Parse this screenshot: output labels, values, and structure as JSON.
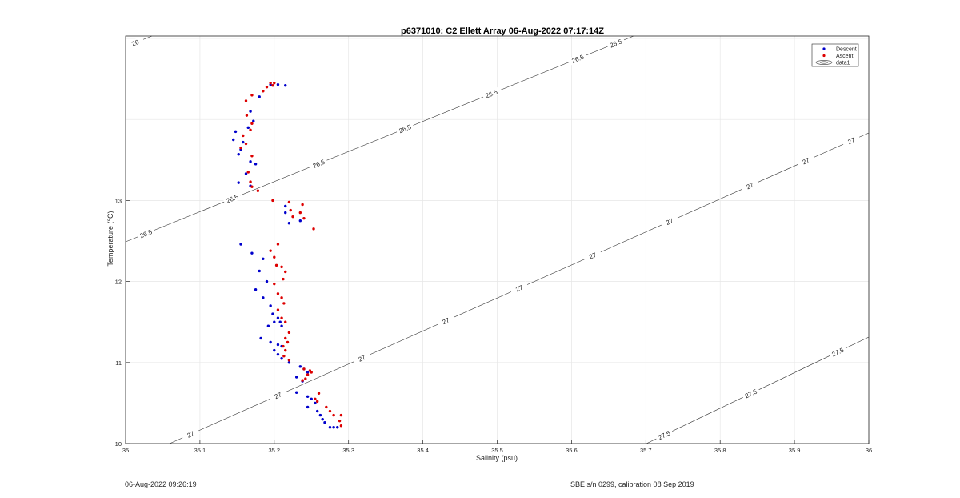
{
  "chart_data": {
    "type": "scatter",
    "title": "p6371010: C2 Ellett Array 06-Aug-2022 07:17:14Z",
    "xlabel": "Salinity (psu)",
    "ylabel": "Temperature (°C)",
    "xlim": [
      35,
      36
    ],
    "ylim": [
      10,
      15
    ],
    "xticks": [
      "35",
      "35.1",
      "35.2",
      "35.3",
      "35.4",
      "35.5",
      "35.6",
      "35.7",
      "35.8",
      "35.9",
      "36"
    ],
    "yticks": [
      "10",
      "11",
      "12",
      "13"
    ],
    "grid": true,
    "legend_position": "top-right",
    "legend": [
      "Descent",
      "Ascent",
      "data1"
    ],
    "colors": {
      "descent": "#0000cc",
      "ascent": "#dd0000",
      "contour": "#333333",
      "grid": "#e6e6e6"
    },
    "series": [
      {
        "name": "Descent",
        "points": [
          [
            35.215,
            14.42
          ],
          [
            35.205,
            14.43
          ],
          [
            35.195,
            14.43
          ],
          [
            35.18,
            14.28
          ],
          [
            35.168,
            14.1
          ],
          [
            35.172,
            13.98
          ],
          [
            35.165,
            13.9
          ],
          [
            35.145,
            13.75
          ],
          [
            35.148,
            13.85
          ],
          [
            35.158,
            13.72
          ],
          [
            35.155,
            13.63
          ],
          [
            35.152,
            13.57
          ],
          [
            35.168,
            13.48
          ],
          [
            35.175,
            13.45
          ],
          [
            35.162,
            13.33
          ],
          [
            35.152,
            13.22
          ],
          [
            35.168,
            13.18
          ],
          [
            35.215,
            12.93
          ],
          [
            35.215,
            12.85
          ],
          [
            35.22,
            12.72
          ],
          [
            35.235,
            12.75
          ],
          [
            35.155,
            12.46
          ],
          [
            35.17,
            12.35
          ],
          [
            35.185,
            12.28
          ],
          [
            35.18,
            12.13
          ],
          [
            35.19,
            12.0
          ],
          [
            35.175,
            11.9
          ],
          [
            35.185,
            11.8
          ],
          [
            35.195,
            11.7
          ],
          [
            35.198,
            11.6
          ],
          [
            35.205,
            11.55
          ],
          [
            35.208,
            11.5
          ],
          [
            35.192,
            11.45
          ],
          [
            35.2,
            11.5
          ],
          [
            35.21,
            11.45
          ],
          [
            35.182,
            11.3
          ],
          [
            35.195,
            11.25
          ],
          [
            35.205,
            11.22
          ],
          [
            35.21,
            11.2
          ],
          [
            35.2,
            11.15
          ],
          [
            35.205,
            11.1
          ],
          [
            35.21,
            11.05
          ],
          [
            35.22,
            11.0
          ],
          [
            35.235,
            10.95
          ],
          [
            35.24,
            10.92
          ],
          [
            35.245,
            10.88
          ],
          [
            35.23,
            10.82
          ],
          [
            35.238,
            10.77
          ],
          [
            35.23,
            10.63
          ],
          [
            35.245,
            10.58
          ],
          [
            35.25,
            10.55
          ],
          [
            35.255,
            10.5
          ],
          [
            35.245,
            10.45
          ],
          [
            35.258,
            10.4
          ],
          [
            35.262,
            10.35
          ],
          [
            35.265,
            10.3
          ],
          [
            35.268,
            10.26
          ],
          [
            35.275,
            10.2
          ],
          [
            35.28,
            10.2
          ],
          [
            35.285,
            10.2
          ]
        ]
      },
      {
        "name": "Ascent",
        "points": [
          [
            35.2,
            14.45
          ],
          [
            35.195,
            14.45
          ],
          [
            35.198,
            14.42
          ],
          [
            35.19,
            14.4
          ],
          [
            35.185,
            14.35
          ],
          [
            35.17,
            14.3
          ],
          [
            35.162,
            14.23
          ],
          [
            35.163,
            14.05
          ],
          [
            35.17,
            13.95
          ],
          [
            35.168,
            13.87
          ],
          [
            35.158,
            13.8
          ],
          [
            35.162,
            13.7
          ],
          [
            35.155,
            13.65
          ],
          [
            35.17,
            13.55
          ],
          [
            35.165,
            13.35
          ],
          [
            35.168,
            13.23
          ],
          [
            35.17,
            13.17
          ],
          [
            35.178,
            13.12
          ],
          [
            35.198,
            13.0
          ],
          [
            35.22,
            12.98
          ],
          [
            35.222,
            12.88
          ],
          [
            35.238,
            12.95
          ],
          [
            35.235,
            12.85
          ],
          [
            35.225,
            12.8
          ],
          [
            35.24,
            12.78
          ],
          [
            35.253,
            12.65
          ],
          [
            35.205,
            12.46
          ],
          [
            35.195,
            12.38
          ],
          [
            35.2,
            12.3
          ],
          [
            35.203,
            12.2
          ],
          [
            35.21,
            12.18
          ],
          [
            35.215,
            12.12
          ],
          [
            35.212,
            12.03
          ],
          [
            35.2,
            11.97
          ],
          [
            35.205,
            11.85
          ],
          [
            35.21,
            11.8
          ],
          [
            35.213,
            11.73
          ],
          [
            35.205,
            11.65
          ],
          [
            35.21,
            11.55
          ],
          [
            35.215,
            11.5
          ],
          [
            35.22,
            11.37
          ],
          [
            35.215,
            11.3
          ],
          [
            35.218,
            11.25
          ],
          [
            35.212,
            11.2
          ],
          [
            35.215,
            11.15
          ],
          [
            35.213,
            11.08
          ],
          [
            35.22,
            11.03
          ],
          [
            35.24,
            10.92
          ],
          [
            35.248,
            10.9
          ],
          [
            35.245,
            10.85
          ],
          [
            35.25,
            10.88
          ],
          [
            35.242,
            10.8
          ],
          [
            35.238,
            10.78
          ],
          [
            35.26,
            10.62
          ],
          [
            35.255,
            10.55
          ],
          [
            35.258,
            10.52
          ],
          [
            35.27,
            10.45
          ],
          [
            35.275,
            10.4
          ],
          [
            35.28,
            10.35
          ],
          [
            35.29,
            10.35
          ],
          [
            35.288,
            10.28
          ],
          [
            35.29,
            10.22
          ]
        ]
      }
    ],
    "contours": [
      {
        "level": "26",
        "labels": [
          "26"
        ]
      },
      {
        "level": "26.5",
        "labels": [
          "26.5",
          "26.5",
          "26.5",
          "26.5",
          "26.5",
          "26.5",
          "26.5"
        ]
      },
      {
        "level": "27",
        "labels": [
          "27",
          "27",
          "27",
          "27",
          "27",
          "27",
          "27",
          "27",
          "27",
          "27"
        ]
      },
      {
        "level": "27.5",
        "labels": [
          "27.5",
          "27.5",
          "27.5"
        ]
      }
    ]
  },
  "footer": {
    "left": "06-Aug-2022 09:26:19",
    "right": "SBE s/n 0299, calibration 08 Sep 2019"
  }
}
